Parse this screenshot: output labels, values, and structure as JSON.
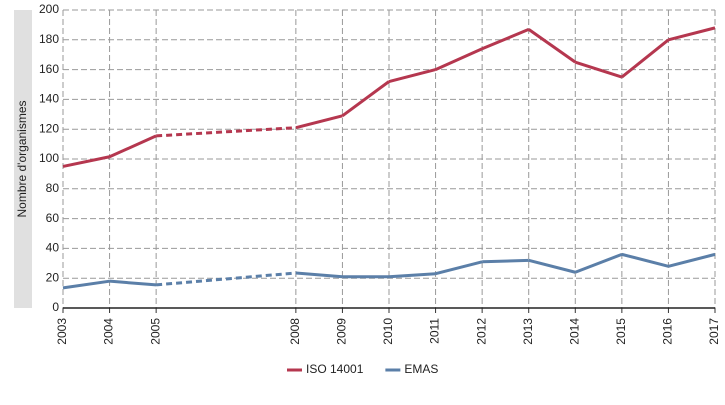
{
  "chart_data": {
    "type": "line",
    "y_label": "Nombre d'organismes",
    "x": [
      2003,
      2004,
      2005,
      2008,
      2009,
      2010,
      2011,
      2012,
      2013,
      2014,
      2015,
      2016,
      2017
    ],
    "xlim": [
      2003,
      2017
    ],
    "series": [
      {
        "name": "ISO 14001",
        "color": "#b5374f",
        "values": [
          95,
          101.5,
          115.5,
          121,
          129,
          152,
          160,
          174,
          187,
          165,
          155,
          180,
          188
        ]
      },
      {
        "name": "EMAS",
        "color": "#5b7fa8",
        "values": [
          13.5,
          18,
          15.5,
          23.5,
          21,
          21,
          23,
          31,
          32,
          24,
          36,
          28,
          36
        ]
      }
    ],
    "ylim": [
      0,
      200
    ],
    "yticks": [
      0,
      20,
      40,
      60,
      80,
      100,
      120,
      140,
      160,
      180,
      200
    ],
    "grid": true
  }
}
